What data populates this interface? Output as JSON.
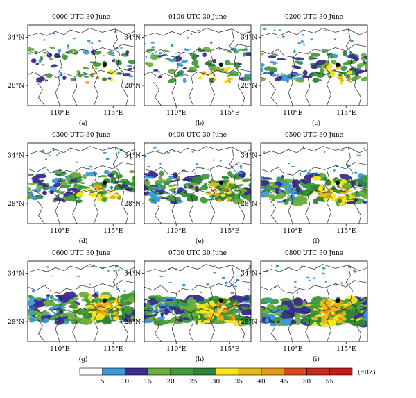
{
  "figure": {
    "panels": [
      {
        "id": "a",
        "title": "0000 UTC 30 June",
        "letter": "(a)",
        "stage": 0
      },
      {
        "id": "b",
        "title": "0100 UTC 30 June",
        "letter": "(b)",
        "stage": 1
      },
      {
        "id": "c",
        "title": "0200 UTC 30 June",
        "letter": "(c)",
        "stage": 2
      },
      {
        "id": "d",
        "title": "0300 UTC 30 June",
        "letter": "(d)",
        "stage": 3
      },
      {
        "id": "e",
        "title": "0400 UTC 30 June",
        "letter": "(e)",
        "stage": 4
      },
      {
        "id": "f",
        "title": "0500 UTC 30 June",
        "letter": "(f)",
        "stage": 5
      },
      {
        "id": "g",
        "title": "0600 UTC 30 June",
        "letter": "(g)",
        "stage": 6
      },
      {
        "id": "h",
        "title": "0700 UTC 30 June",
        "letter": "(h)",
        "stage": 7
      },
      {
        "id": "i",
        "title": "0800 UTC 30 June",
        "letter": "(i)",
        "stage": 8
      }
    ],
    "map": {
      "lon_range": [
        107,
        117
      ],
      "lat_range": [
        25.5,
        35.5
      ],
      "lon_ticks": [
        {
          "value": 110,
          "label": "110°E"
        },
        {
          "value": 115,
          "label": "115°E"
        }
      ],
      "lat_ticks": [
        {
          "value": 34,
          "label": "34°N"
        },
        {
          "value": 28,
          "label": "28°N"
        }
      ],
      "station": {
        "lon": 114.2,
        "lat": 30.6
      }
    },
    "colorbar": {
      "unit": "(dBZ)",
      "bins": [
        {
          "label": "",
          "color": "#ffffff"
        },
        {
          "label": "5",
          "color": "#3a9ad8"
        },
        {
          "label": "10",
          "color": "#3a2d8c"
        },
        {
          "label": "15",
          "color": "#6aae3e"
        },
        {
          "label": "20",
          "color": "#3f9a3b"
        },
        {
          "label": "25",
          "color": "#2d8437"
        },
        {
          "label": "30",
          "color": "#f5e61c"
        },
        {
          "label": "35",
          "color": "#e8b818"
        },
        {
          "label": "40",
          "color": "#e49a17"
        },
        {
          "label": "45",
          "color": "#d84a1c"
        },
        {
          "label": "50",
          "color": "#cc2a1e"
        },
        {
          "label": "55",
          "color": "#c51a1c"
        }
      ]
    }
  }
}
